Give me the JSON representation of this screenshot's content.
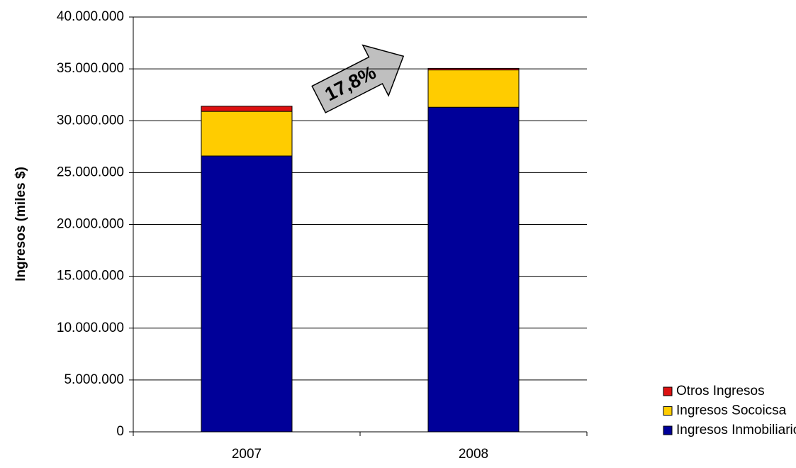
{
  "chart_data": {
    "type": "stacked_bar",
    "ylabel": "Ingresos (miles $)",
    "categories": [
      "2007",
      "2008"
    ],
    "series": [
      {
        "name": "Ingresos Inmobiliarios",
        "color": "#000099",
        "values": [
          26600000,
          31300000
        ]
      },
      {
        "name": "Ingresos Socoicsa",
        "color": "#ffcc00",
        "values": [
          4300000,
          3600000
        ]
      },
      {
        "name": "Otros Ingresos",
        "color": "#dd1111",
        "values": [
          500000,
          150000
        ]
      }
    ],
    "ylim": [
      0,
      40000000
    ],
    "yticks": [
      0,
      {
        "value": 5000000,
        "label": "5.000.000"
      },
      {
        "value": 10000000,
        "label": "10.000.000"
      },
      {
        "value": 15000000,
        "label": "15.000.000"
      },
      {
        "value": 20000000,
        "label": "20.000.000"
      },
      {
        "value": 25000000,
        "label": "25.000.000"
      },
      {
        "value": 30000000,
        "label": "30.000.000"
      },
      {
        "value": 35000000,
        "label": "35.000.000"
      },
      {
        "value": 40000000,
        "label": "40.000.000"
      }
    ],
    "grid": true,
    "legend": "lower right",
    "annotation": "17,8%"
  }
}
